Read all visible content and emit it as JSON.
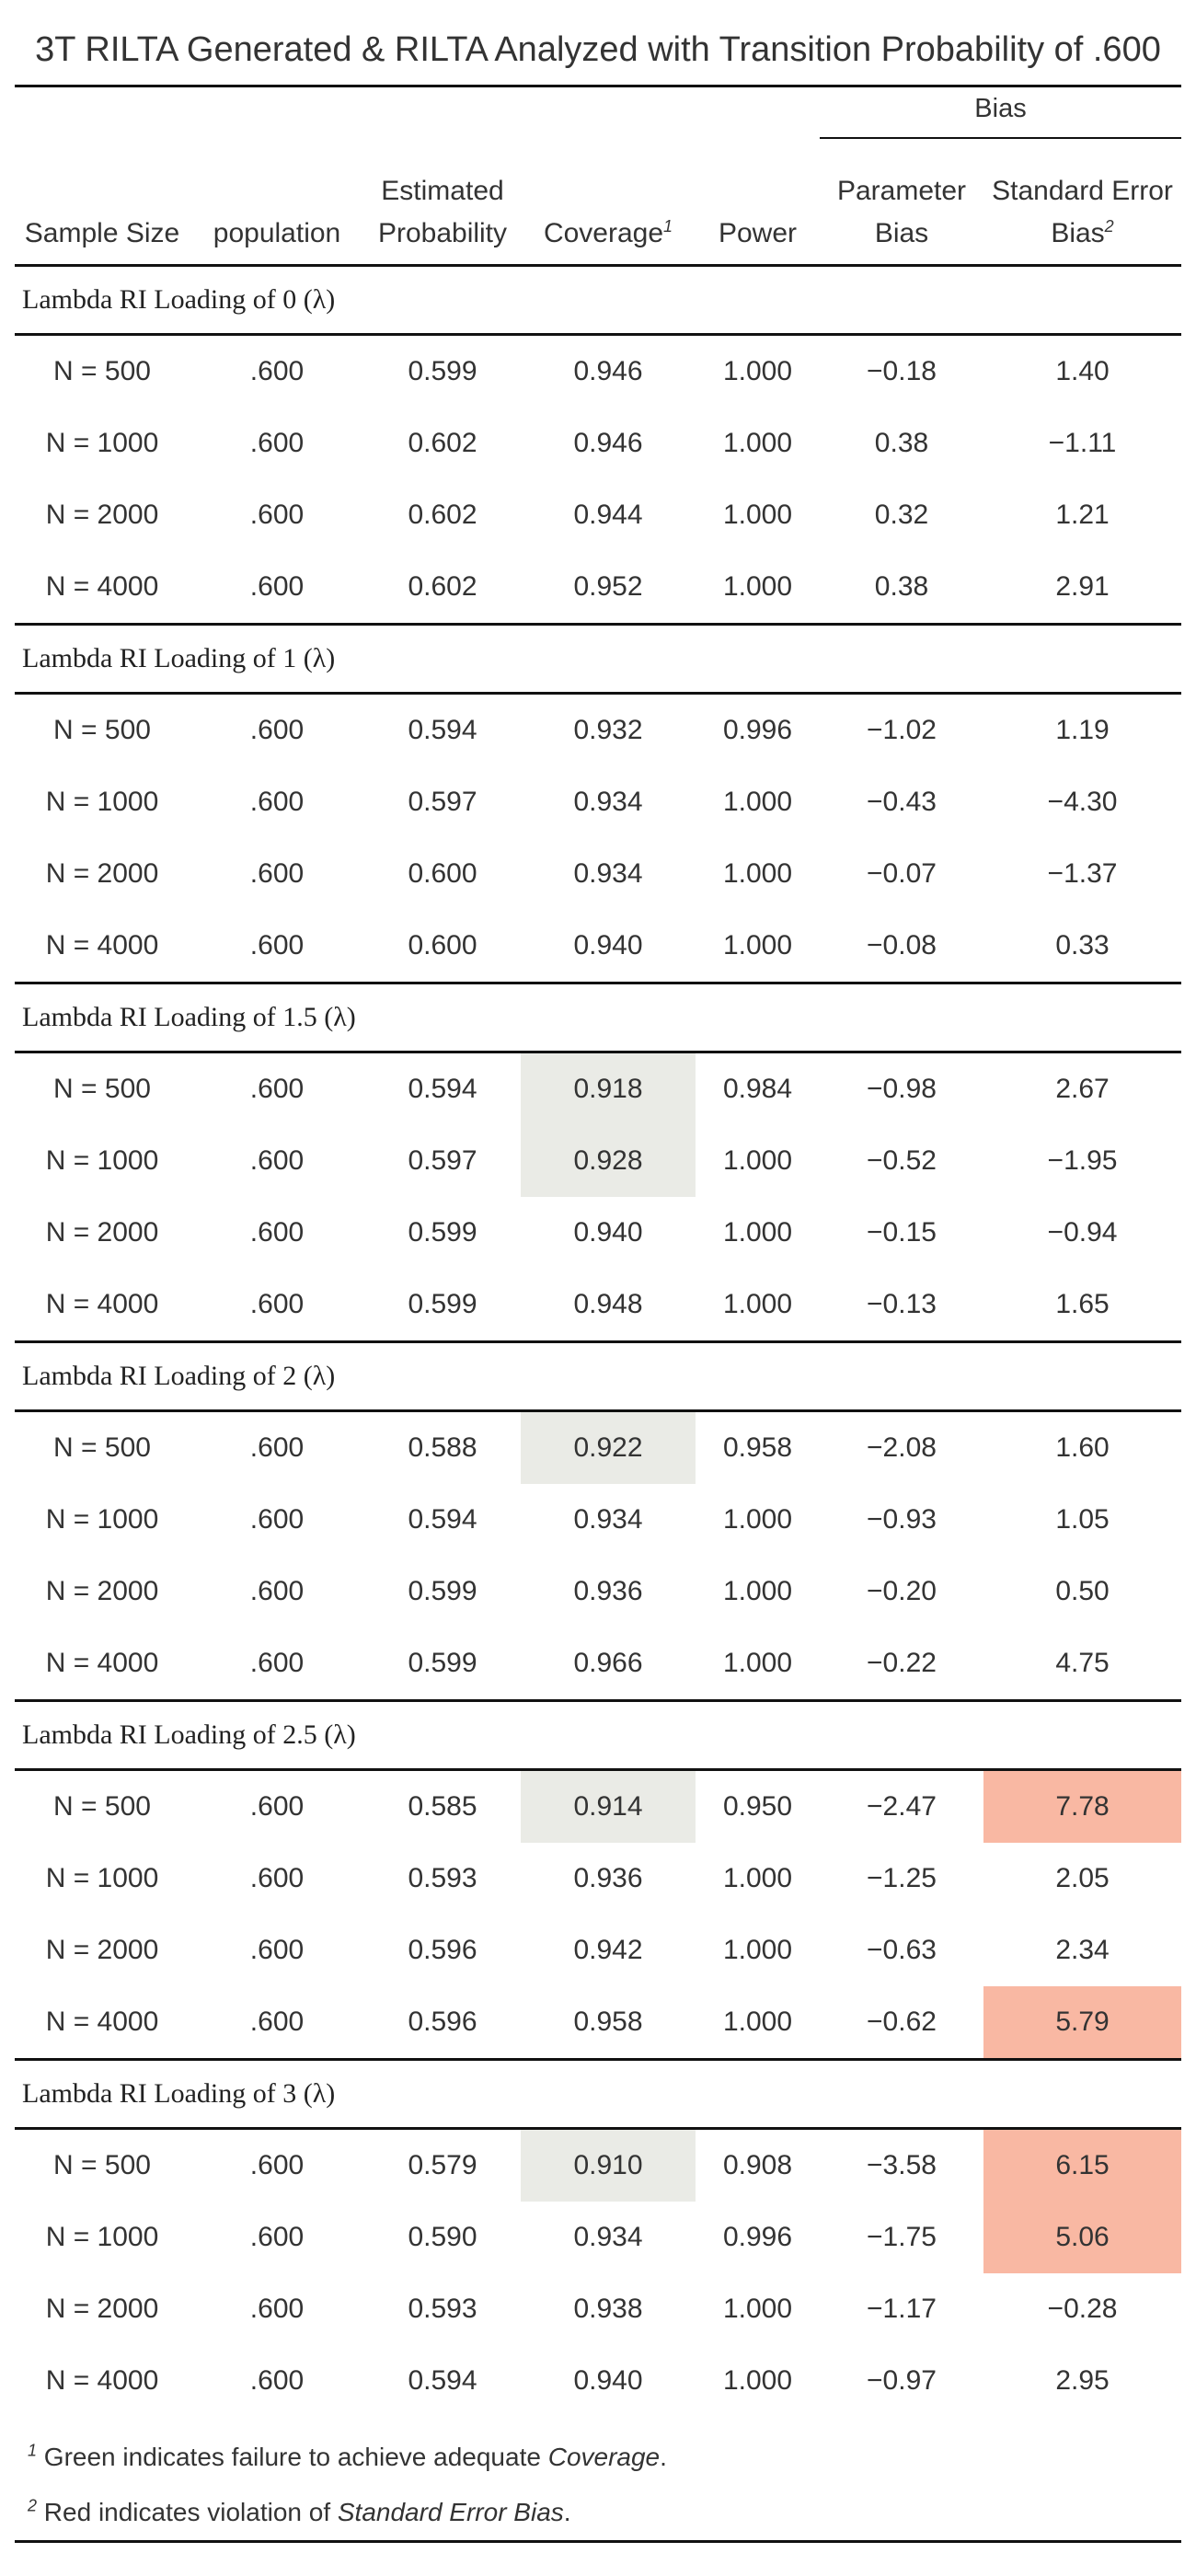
{
  "title": "3T RILTA Generated & RILTA Analyzed with Transition Probability of .600",
  "header": {
    "bias_group": "Bias",
    "columns": [
      {
        "label": "Sample Size",
        "sup": ""
      },
      {
        "label": "population",
        "sup": ""
      },
      {
        "label": "Estimated Probability",
        "sup": ""
      },
      {
        "label": "Coverage",
        "sup": "1"
      },
      {
        "label": "Power",
        "sup": ""
      },
      {
        "label": "Parameter Bias",
        "sup": ""
      },
      {
        "label": "Standard Error Bias",
        "sup": "2"
      }
    ]
  },
  "groups": [
    {
      "label": "Lambda RI Loading of 0 (λ)",
      "rows": [
        {
          "n": "N = 500",
          "pop": ".600",
          "est": "0.599",
          "cov": "0.946",
          "cov_flag": false,
          "power": "1.000",
          "pbias": "−0.18",
          "sebias": "1.40",
          "se_flag": false
        },
        {
          "n": "N = 1000",
          "pop": ".600",
          "est": "0.602",
          "cov": "0.946",
          "cov_flag": false,
          "power": "1.000",
          "pbias": "0.38",
          "sebias": "−1.11",
          "se_flag": false
        },
        {
          "n": "N = 2000",
          "pop": ".600",
          "est": "0.602",
          "cov": "0.944",
          "cov_flag": false,
          "power": "1.000",
          "pbias": "0.32",
          "sebias": "1.21",
          "se_flag": false
        },
        {
          "n": "N = 4000",
          "pop": ".600",
          "est": "0.602",
          "cov": "0.952",
          "cov_flag": false,
          "power": "1.000",
          "pbias": "0.38",
          "sebias": "2.91",
          "se_flag": false
        }
      ]
    },
    {
      "label": "Lambda RI Loading of 1 (λ)",
      "rows": [
        {
          "n": "N = 500",
          "pop": ".600",
          "est": "0.594",
          "cov": "0.932",
          "cov_flag": false,
          "power": "0.996",
          "pbias": "−1.02",
          "sebias": "1.19",
          "se_flag": false
        },
        {
          "n": "N = 1000",
          "pop": ".600",
          "est": "0.597",
          "cov": "0.934",
          "cov_flag": false,
          "power": "1.000",
          "pbias": "−0.43",
          "sebias": "−4.30",
          "se_flag": false
        },
        {
          "n": "N = 2000",
          "pop": ".600",
          "est": "0.600",
          "cov": "0.934",
          "cov_flag": false,
          "power": "1.000",
          "pbias": "−0.07",
          "sebias": "−1.37",
          "se_flag": false
        },
        {
          "n": "N = 4000",
          "pop": ".600",
          "est": "0.600",
          "cov": "0.940",
          "cov_flag": false,
          "power": "1.000",
          "pbias": "−0.08",
          "sebias": "0.33",
          "se_flag": false
        }
      ]
    },
    {
      "label": "Lambda RI Loading of 1.5 (λ)",
      "rows": [
        {
          "n": "N = 500",
          "pop": ".600",
          "est": "0.594",
          "cov": "0.918",
          "cov_flag": true,
          "power": "0.984",
          "pbias": "−0.98",
          "sebias": "2.67",
          "se_flag": false
        },
        {
          "n": "N = 1000",
          "pop": ".600",
          "est": "0.597",
          "cov": "0.928",
          "cov_flag": true,
          "power": "1.000",
          "pbias": "−0.52",
          "sebias": "−1.95",
          "se_flag": false
        },
        {
          "n": "N = 2000",
          "pop": ".600",
          "est": "0.599",
          "cov": "0.940",
          "cov_flag": false,
          "power": "1.000",
          "pbias": "−0.15",
          "sebias": "−0.94",
          "se_flag": false
        },
        {
          "n": "N = 4000",
          "pop": ".600",
          "est": "0.599",
          "cov": "0.948",
          "cov_flag": false,
          "power": "1.000",
          "pbias": "−0.13",
          "sebias": "1.65",
          "se_flag": false
        }
      ]
    },
    {
      "label": "Lambda RI Loading of 2 (λ)",
      "rows": [
        {
          "n": "N = 500",
          "pop": ".600",
          "est": "0.588",
          "cov": "0.922",
          "cov_flag": true,
          "power": "0.958",
          "pbias": "−2.08",
          "sebias": "1.60",
          "se_flag": false
        },
        {
          "n": "N = 1000",
          "pop": ".600",
          "est": "0.594",
          "cov": "0.934",
          "cov_flag": false,
          "power": "1.000",
          "pbias": "−0.93",
          "sebias": "1.05",
          "se_flag": false
        },
        {
          "n": "N = 2000",
          "pop": ".600",
          "est": "0.599",
          "cov": "0.936",
          "cov_flag": false,
          "power": "1.000",
          "pbias": "−0.20",
          "sebias": "0.50",
          "se_flag": false
        },
        {
          "n": "N = 4000",
          "pop": ".600",
          "est": "0.599",
          "cov": "0.966",
          "cov_flag": false,
          "power": "1.000",
          "pbias": "−0.22",
          "sebias": "4.75",
          "se_flag": false
        }
      ]
    },
    {
      "label": "Lambda RI Loading of 2.5 (λ)",
      "rows": [
        {
          "n": "N = 500",
          "pop": ".600",
          "est": "0.585",
          "cov": "0.914",
          "cov_flag": true,
          "power": "0.950",
          "pbias": "−2.47",
          "sebias": "7.78",
          "se_flag": true
        },
        {
          "n": "N = 1000",
          "pop": ".600",
          "est": "0.593",
          "cov": "0.936",
          "cov_flag": false,
          "power": "1.000",
          "pbias": "−1.25",
          "sebias": "2.05",
          "se_flag": false
        },
        {
          "n": "N = 2000",
          "pop": ".600",
          "est": "0.596",
          "cov": "0.942",
          "cov_flag": false,
          "power": "1.000",
          "pbias": "−0.63",
          "sebias": "2.34",
          "se_flag": false
        },
        {
          "n": "N = 4000",
          "pop": ".600",
          "est": "0.596",
          "cov": "0.958",
          "cov_flag": false,
          "power": "1.000",
          "pbias": "−0.62",
          "sebias": "5.79",
          "se_flag": true
        }
      ]
    },
    {
      "label": "Lambda RI Loading of 3 (λ)",
      "rows": [
        {
          "n": "N = 500",
          "pop": ".600",
          "est": "0.579",
          "cov": "0.910",
          "cov_flag": true,
          "power": "0.908",
          "pbias": "−3.58",
          "sebias": "6.15",
          "se_flag": true
        },
        {
          "n": "N = 1000",
          "pop": ".600",
          "est": "0.590",
          "cov": "0.934",
          "cov_flag": false,
          "power": "0.996",
          "pbias": "−1.75",
          "sebias": "5.06",
          "se_flag": true
        },
        {
          "n": "N = 2000",
          "pop": ".600",
          "est": "0.593",
          "cov": "0.938",
          "cov_flag": false,
          "power": "1.000",
          "pbias": "−1.17",
          "sebias": "−0.28",
          "se_flag": false
        },
        {
          "n": "N = 4000",
          "pop": ".600",
          "est": "0.594",
          "cov": "0.940",
          "cov_flag": false,
          "power": "1.000",
          "pbias": "−0.97",
          "sebias": "2.95",
          "se_flag": false
        }
      ]
    }
  ],
  "footnotes": [
    {
      "mark": "1",
      "before": "Green indicates failure to achieve adequate ",
      "em": "Coverage",
      "after": "."
    },
    {
      "mark": "2",
      "before": "Red indicates violation of ",
      "em": "Standard Error Bias",
      "after": "."
    }
  ],
  "colors": {
    "coverage_flag": "#eaebe6",
    "se_bias_flag": "#f9b8a3"
  }
}
